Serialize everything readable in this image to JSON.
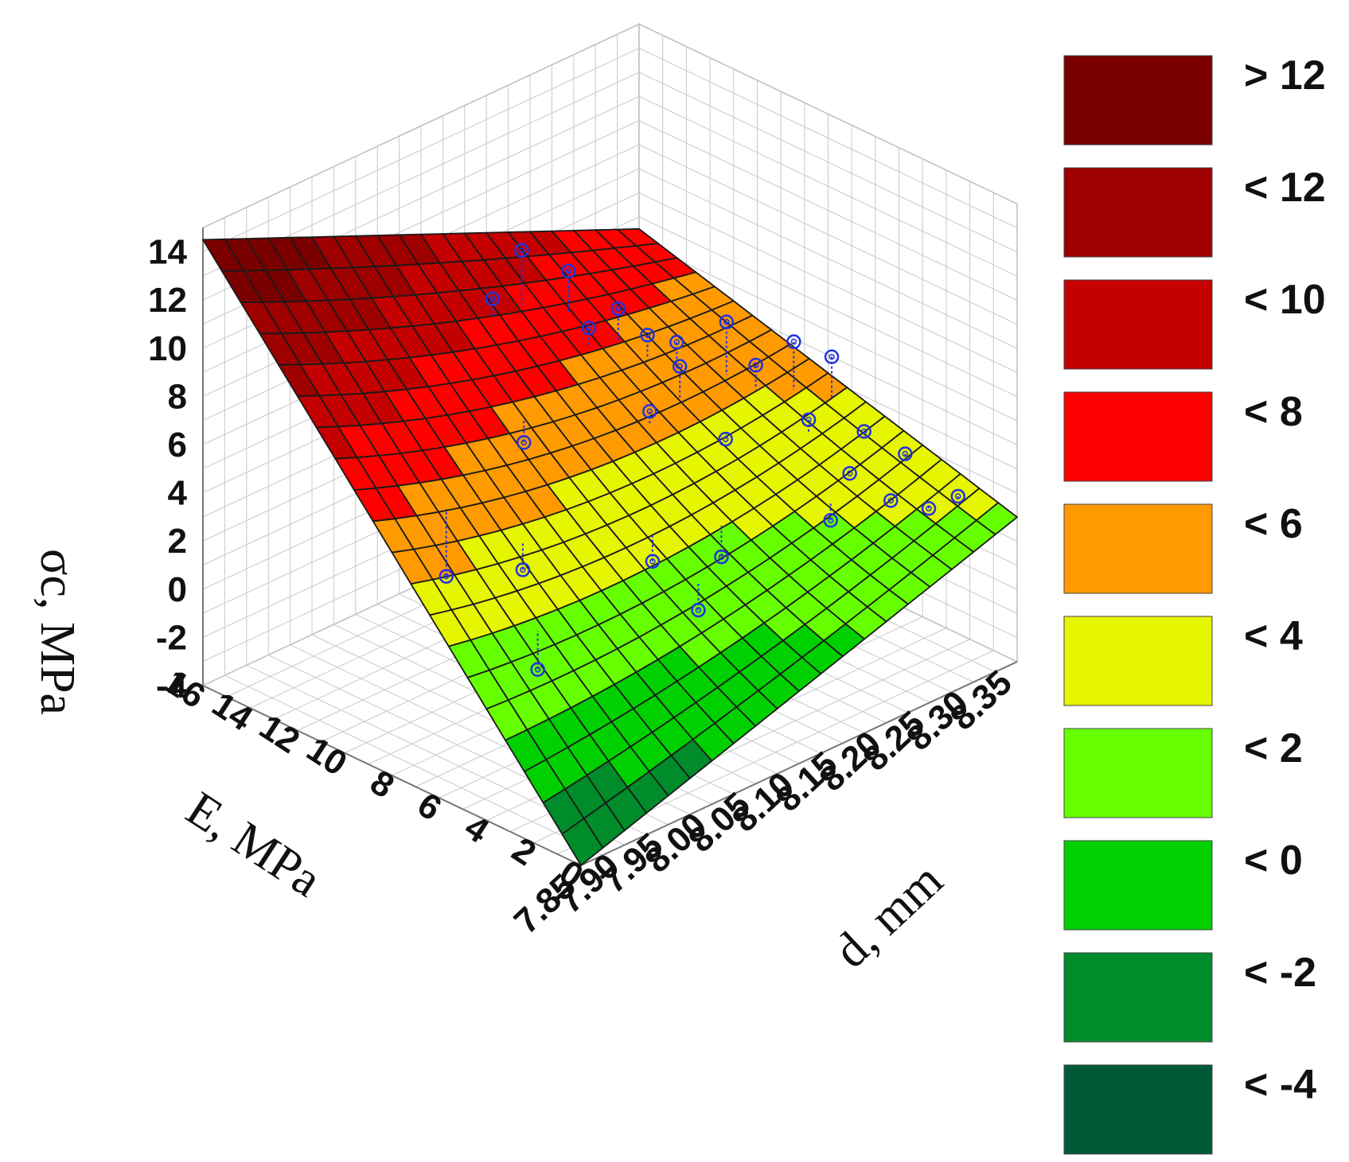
{
  "chart_data": {
    "type": "surface3d",
    "title": "",
    "axes": {
      "z": {
        "label": "σc, MPa",
        "ticks": [
          "14",
          "12",
          "10",
          "8",
          "6",
          "4",
          "2",
          "0",
          "-2",
          "-4"
        ],
        "range": [
          -4,
          15
        ]
      },
      "e": {
        "label": "E, MPa",
        "ticks": [
          "16",
          "14",
          "12",
          "10",
          "8",
          "6",
          "4",
          "2",
          "0"
        ],
        "range": [
          0,
          16
        ]
      },
      "d": {
        "label": "d, mm",
        "ticks": [
          "7.85",
          "7.90",
          "7.95",
          "8.00",
          "8.05",
          "8.10",
          "8.15",
          "8.20",
          "8.25",
          "8.30",
          "8.35"
        ],
        "range": [
          7.85,
          8.35
        ]
      }
    },
    "grid": true,
    "legend": {
      "placement": "right",
      "entries": [
        {
          "label": "> 12",
          "color": "#7a0000"
        },
        {
          "label": "< 12",
          "color": "#9e0000"
        },
        {
          "label": "< 10",
          "color": "#c40000"
        },
        {
          "label": "< 8",
          "color": "#ff0000"
        },
        {
          "label": "< 6",
          "color": "#ff9a00"
        },
        {
          "label": "< 4",
          "color": "#e6f500"
        },
        {
          "label": "< 2",
          "color": "#66ff00"
        },
        {
          "label": "< 0",
          "color": "#00d000"
        },
        {
          "label": "< -2",
          "color": "#008c2a"
        },
        {
          "label": "< -4",
          "color": "#005a38"
        }
      ]
    },
    "surface": {
      "corners": [
        {
          "E": 16,
          "d": 7.85,
          "sigma": 14.5
        },
        {
          "E": 0,
          "d": 7.85,
          "sigma": -4
        },
        {
          "E": 16,
          "d": 8.35,
          "sigma": 6.5
        },
        {
          "E": 0,
          "d": 8.35,
          "sigma": 2
        }
      ],
      "center_sigma": 3.5
    },
    "points": [
      {
        "E": 11.0,
        "d": 8.08,
        "sigma": 12.5,
        "fit": 10.2
      },
      {
        "E": 10.5,
        "d": 8.12,
        "sigma": 11.2,
        "fit": 9.5
      },
      {
        "E": 11.5,
        "d": 8.06,
        "sigma": 10.6,
        "fit": 9.8
      },
      {
        "E": 9.5,
        "d": 8.15,
        "sigma": 9.6,
        "fit": 8.3
      },
      {
        "E": 10.0,
        "d": 8.13,
        "sigma": 8.9,
        "fit": 8.1
      },
      {
        "E": 9.0,
        "d": 8.17,
        "sigma": 8.4,
        "fit": 7.4
      },
      {
        "E": 8.5,
        "d": 8.19,
        "sigma": 8.0,
        "fit": 6.8
      },
      {
        "E": 7.5,
        "d": 8.22,
        "sigma": 8.8,
        "fit": 6.6
      },
      {
        "E": 8.0,
        "d": 8.18,
        "sigma": 7.4,
        "fit": 6.1
      },
      {
        "E": 7.0,
        "d": 8.24,
        "sigma": 6.9,
        "fit": 5.9
      },
      {
        "E": 6.5,
        "d": 8.27,
        "sigma": 7.6,
        "fit": 5.6
      },
      {
        "E": 7.8,
        "d": 8.14,
        "sigma": 6.3,
        "fit": 5.8
      },
      {
        "E": 6.0,
        "d": 8.3,
        "sigma": 6.7,
        "fit": 5.0
      },
      {
        "E": 5.5,
        "d": 8.26,
        "sigma": 5.0,
        "fit": 4.4
      },
      {
        "E": 6.8,
        "d": 8.2,
        "sigma": 4.6,
        "fit": 4.9
      },
      {
        "E": 9.8,
        "d": 8.05,
        "sigma": 5.6,
        "fit": 6.6
      },
      {
        "E": 5.0,
        "d": 8.31,
        "sigma": 3.9,
        "fit": 3.6
      },
      {
        "E": 4.5,
        "d": 8.28,
        "sigma": 2.9,
        "fit": 2.9
      },
      {
        "E": 4.0,
        "d": 8.33,
        "sigma": 3.1,
        "fit": 2.7
      },
      {
        "E": 4.2,
        "d": 8.25,
        "sigma": 1.6,
        "fit": 2.3
      },
      {
        "E": 3.5,
        "d": 8.3,
        "sigma": 1.9,
        "fit": 1.9
      },
      {
        "E": 6.2,
        "d": 8.1,
        "sigma": 1.5,
        "fit": 2.6
      },
      {
        "E": 5.5,
        "d": 8.16,
        "sigma": 1.0,
        "fit": 2.3
      },
      {
        "E": 8.0,
        "d": 8.0,
        "sigma": 2.0,
        "fit": 3.1
      },
      {
        "E": 10.5,
        "d": 7.98,
        "sigma": 0.9,
        "fit": 3.7
      },
      {
        "E": 3.0,
        "d": 8.33,
        "sigma": 1.3,
        "fit": 1.4
      },
      {
        "E": 2.5,
        "d": 8.35,
        "sigma": 1.7,
        "fit": 1.5
      },
      {
        "E": 5.0,
        "d": 8.12,
        "sigma": -0.3,
        "fit": 0.8
      },
      {
        "E": 7.0,
        "d": 7.99,
        "sigma": -1.5,
        "fit": 0.1
      }
    ]
  }
}
